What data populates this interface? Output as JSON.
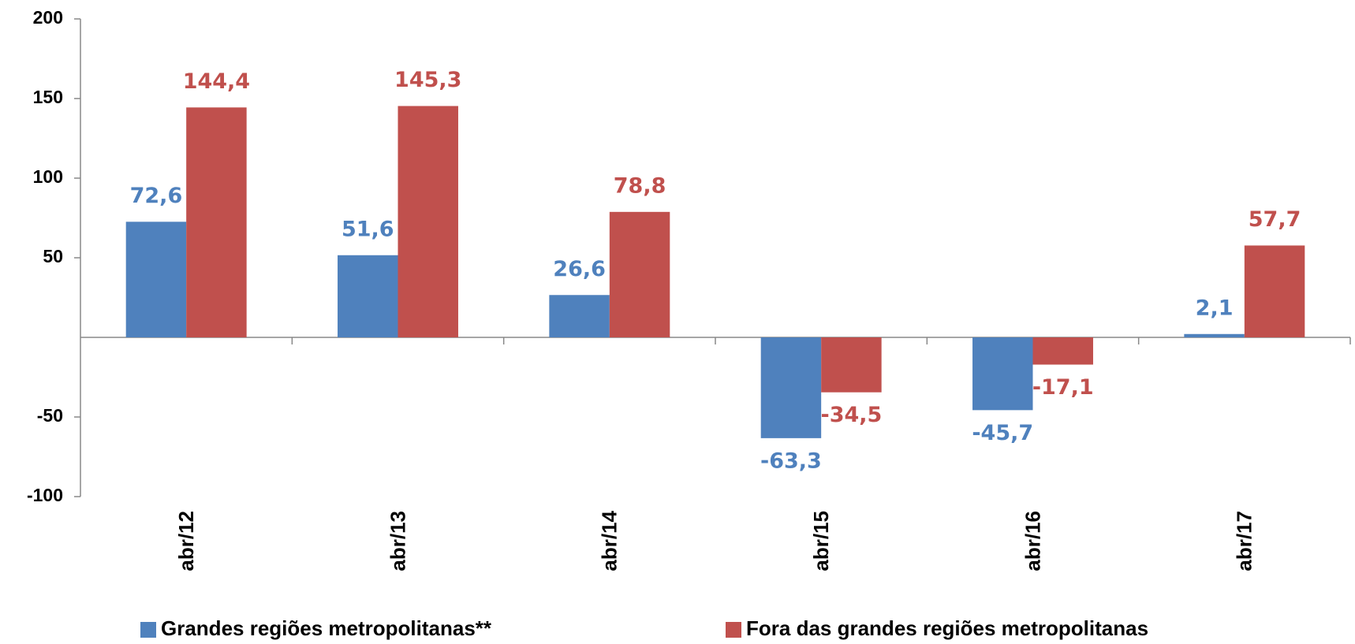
{
  "chart_data": {
    "type": "bar",
    "categories": [
      "abr/12",
      "abr/13",
      "abr/14",
      "abr/15",
      "abr/16",
      "abr/17"
    ],
    "series": [
      {
        "name": "Grandes regiões metropolitanas**",
        "color": "#4f81bd",
        "values": [
          72.6,
          51.6,
          26.6,
          -63.3,
          -45.7,
          2.1
        ],
        "value_labels": [
          "72,6",
          "51,6",
          "26,6",
          "-63,3",
          "-45,7",
          "2,1"
        ]
      },
      {
        "name": "Fora das grandes regiões metropolitanas",
        "color": "#c0504d",
        "values": [
          144.4,
          145.3,
          78.8,
          -34.5,
          -17.1,
          57.7
        ],
        "value_labels": [
          "144,4",
          "145,3",
          "78,8",
          "-34,5",
          "-17,1",
          "57,7"
        ]
      }
    ],
    "ylim": [
      -100,
      200
    ],
    "yticks": [
      -100,
      -50,
      50,
      100,
      150,
      200
    ],
    "grid": false,
    "legend": "bottom"
  }
}
